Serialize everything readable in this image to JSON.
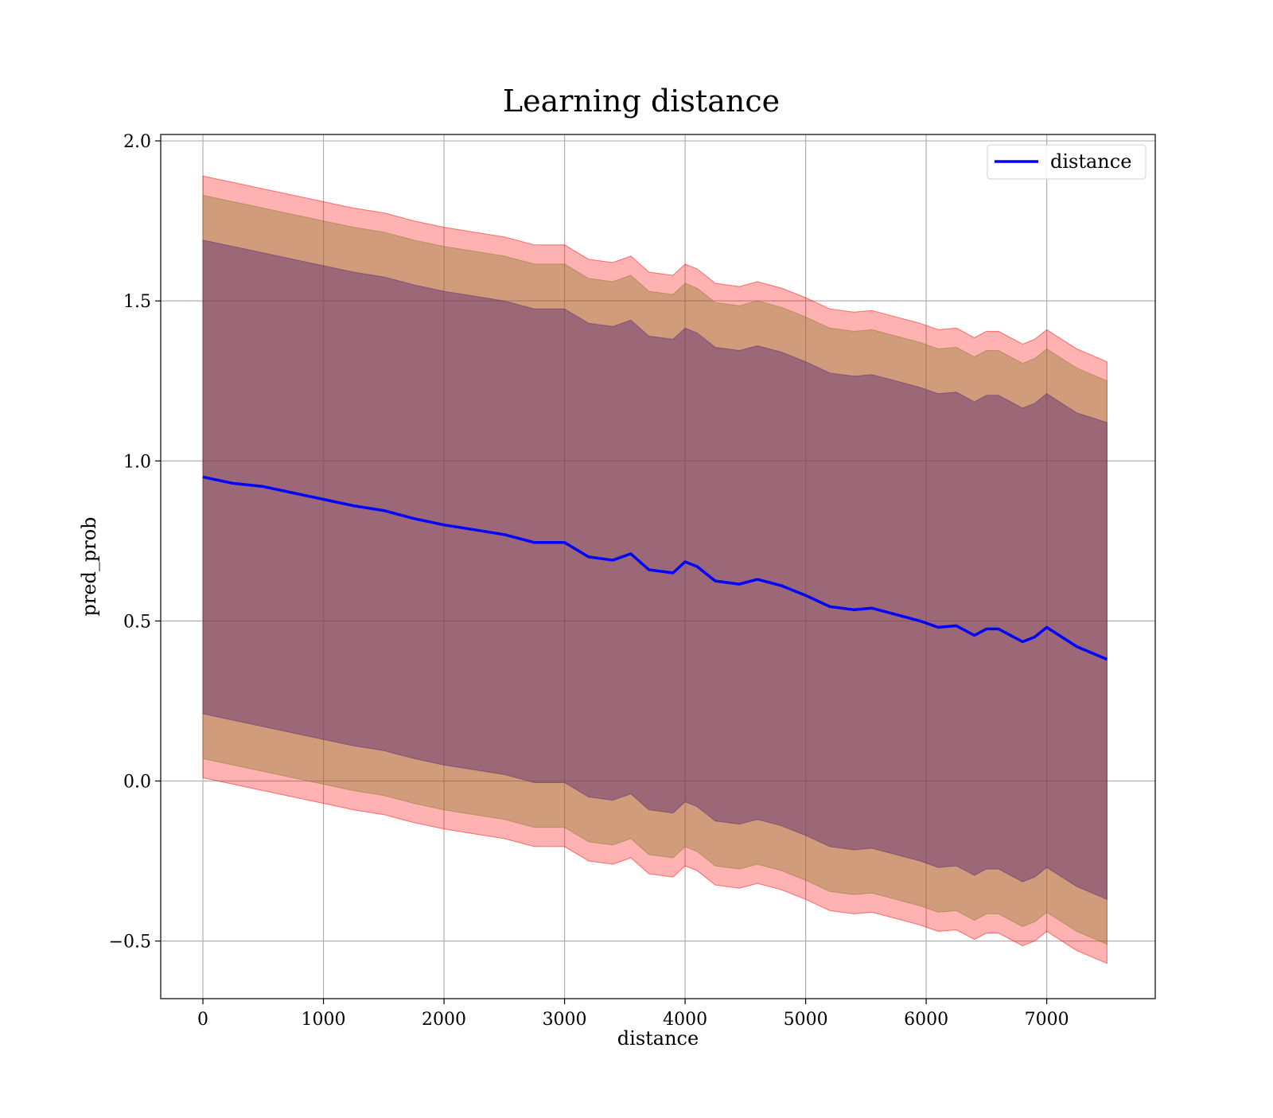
{
  "chart_data": {
    "type": "area",
    "title": "Learning distance",
    "xlabel": "distance",
    "ylabel": "pred_prob",
    "xlim": [
      -350,
      7900
    ],
    "ylim": [
      -0.68,
      2.02
    ],
    "xticks": [
      0,
      1000,
      2000,
      3000,
      4000,
      5000,
      6000,
      7000
    ],
    "xtick_labels": [
      "0",
      "1000",
      "2000",
      "3000",
      "4000",
      "5000",
      "6000",
      "7000"
    ],
    "yticks": [
      -0.5,
      0.0,
      0.5,
      1.0,
      1.5,
      2.0
    ],
    "ytick_labels": [
      "−0.5",
      "0.0",
      "0.5",
      "1.0",
      "1.5",
      "2.0"
    ],
    "grid": true,
    "legend": {
      "placement": "top-right",
      "entries": [
        "distance"
      ]
    },
    "colors": {
      "line": "#0000ff",
      "band_outer": "#ff0000",
      "band_middle": "#8b7a2a",
      "band_inner": "#5c2a70"
    },
    "x": [
      0,
      250,
      500,
      750,
      1000,
      1250,
      1500,
      1750,
      2000,
      2250,
      2500,
      2750,
      3000,
      3200,
      3400,
      3550,
      3700,
      3900,
      4000,
      4100,
      4250,
      4450,
      4600,
      4800,
      5000,
      5200,
      5400,
      5550,
      5750,
      5950,
      6100,
      6250,
      6400,
      6500,
      6600,
      6800,
      6900,
      7000,
      7250,
      7500
    ],
    "series": [
      {
        "name": "distance",
        "values": [
          0.95,
          0.93,
          0.92,
          0.9,
          0.88,
          0.86,
          0.845,
          0.82,
          0.8,
          0.785,
          0.77,
          0.745,
          0.745,
          0.7,
          0.69,
          0.71,
          0.66,
          0.65,
          0.685,
          0.67,
          0.625,
          0.615,
          0.63,
          0.61,
          0.58,
          0.545,
          0.535,
          0.54,
          0.52,
          0.5,
          0.48,
          0.485,
          0.455,
          0.475,
          0.475,
          0.435,
          0.45,
          0.48,
          0.42,
          0.38
        ]
      }
    ],
    "bands": [
      {
        "lower": [
          0.01,
          -0.01,
          -0.03,
          -0.05,
          -0.07,
          -0.09,
          -0.105,
          -0.13,
          -0.15,
          -0.165,
          -0.18,
          -0.205,
          -0.205,
          -0.25,
          -0.26,
          -0.24,
          -0.29,
          -0.3,
          -0.265,
          -0.28,
          -0.325,
          -0.335,
          -0.32,
          -0.34,
          -0.37,
          -0.405,
          -0.415,
          -0.41,
          -0.43,
          -0.45,
          -0.47,
          -0.465,
          -0.495,
          -0.475,
          -0.475,
          -0.515,
          -0.5,
          -0.47,
          -0.53,
          -0.57
        ],
        "upper": [
          1.89,
          1.87,
          1.85,
          1.83,
          1.81,
          1.79,
          1.775,
          1.75,
          1.73,
          1.715,
          1.7,
          1.675,
          1.675,
          1.63,
          1.62,
          1.64,
          1.59,
          1.58,
          1.615,
          1.6,
          1.555,
          1.545,
          1.56,
          1.54,
          1.51,
          1.475,
          1.465,
          1.47,
          1.45,
          1.43,
          1.41,
          1.415,
          1.385,
          1.405,
          1.405,
          1.365,
          1.38,
          1.41,
          1.35,
          1.31
        ]
      },
      {
        "lower": [
          0.07,
          0.05,
          0.03,
          0.01,
          -0.01,
          -0.03,
          -0.045,
          -0.07,
          -0.09,
          -0.105,
          -0.12,
          -0.145,
          -0.145,
          -0.19,
          -0.2,
          -0.18,
          -0.23,
          -0.24,
          -0.205,
          -0.22,
          -0.265,
          -0.275,
          -0.26,
          -0.28,
          -0.31,
          -0.345,
          -0.355,
          -0.35,
          -0.37,
          -0.39,
          -0.41,
          -0.405,
          -0.435,
          -0.415,
          -0.415,
          -0.455,
          -0.44,
          -0.41,
          -0.47,
          -0.51
        ],
        "upper": [
          1.83,
          1.81,
          1.79,
          1.77,
          1.75,
          1.73,
          1.715,
          1.69,
          1.67,
          1.655,
          1.64,
          1.615,
          1.615,
          1.57,
          1.56,
          1.58,
          1.53,
          1.52,
          1.555,
          1.54,
          1.495,
          1.485,
          1.5,
          1.48,
          1.45,
          1.415,
          1.405,
          1.41,
          1.39,
          1.37,
          1.35,
          1.355,
          1.325,
          1.345,
          1.345,
          1.305,
          1.32,
          1.35,
          1.29,
          1.25
        ]
      },
      {
        "lower": [
          0.21,
          0.19,
          0.17,
          0.15,
          0.13,
          0.11,
          0.095,
          0.07,
          0.05,
          0.035,
          0.02,
          -0.005,
          -0.005,
          -0.05,
          -0.06,
          -0.04,
          -0.09,
          -0.1,
          -0.065,
          -0.08,
          -0.125,
          -0.135,
          -0.12,
          -0.14,
          -0.17,
          -0.205,
          -0.215,
          -0.21,
          -0.23,
          -0.25,
          -0.27,
          -0.265,
          -0.295,
          -0.275,
          -0.275,
          -0.315,
          -0.3,
          -0.27,
          -0.33,
          -0.37
        ],
        "upper": [
          1.69,
          1.67,
          1.65,
          1.63,
          1.61,
          1.59,
          1.575,
          1.55,
          1.53,
          1.515,
          1.5,
          1.475,
          1.475,
          1.43,
          1.42,
          1.44,
          1.39,
          1.38,
          1.415,
          1.4,
          1.355,
          1.345,
          1.36,
          1.34,
          1.31,
          1.275,
          1.265,
          1.27,
          1.25,
          1.23,
          1.21,
          1.215,
          1.185,
          1.205,
          1.205,
          1.165,
          1.18,
          1.21,
          1.15,
          1.12
        ]
      }
    ]
  }
}
